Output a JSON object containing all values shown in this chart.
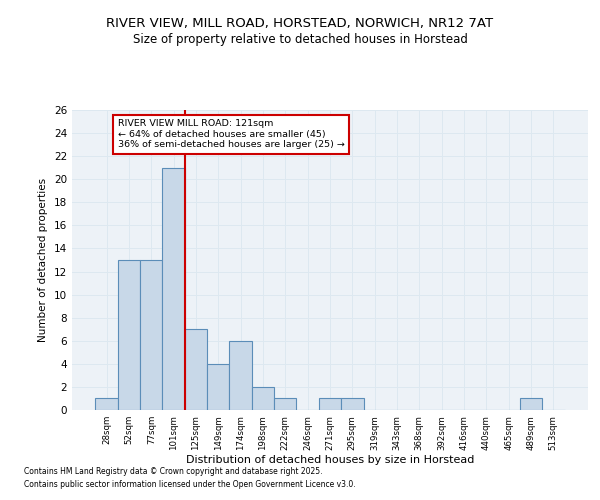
{
  "title_line1": "RIVER VIEW, MILL ROAD, HORSTEAD, NORWICH, NR12 7AT",
  "title_line2": "Size of property relative to detached houses in Horstead",
  "xlabel": "Distribution of detached houses by size in Horstead",
  "ylabel": "Number of detached properties",
  "categories": [
    "28sqm",
    "52sqm",
    "77sqm",
    "101sqm",
    "125sqm",
    "149sqm",
    "174sqm",
    "198sqm",
    "222sqm",
    "246sqm",
    "271sqm",
    "295sqm",
    "319sqm",
    "343sqm",
    "368sqm",
    "392sqm",
    "416sqm",
    "440sqm",
    "465sqm",
    "489sqm",
    "513sqm"
  ],
  "values": [
    1,
    13,
    13,
    21,
    7,
    4,
    6,
    2,
    1,
    0,
    1,
    1,
    0,
    0,
    0,
    0,
    0,
    0,
    0,
    1,
    0
  ],
  "bar_color": "#c8d8e8",
  "bar_edge_color": "#5b8db8",
  "grid_color": "#dde8f0",
  "background_color": "#edf2f7",
  "annotation_text": "RIVER VIEW MILL ROAD: 121sqm\n← 64% of detached houses are smaller (45)\n36% of semi-detached houses are larger (25) →",
  "vline_index": 3.5,
  "vline_color": "#cc0000",
  "annotation_box_edgecolor": "#cc0000",
  "ylim": [
    0,
    26
  ],
  "yticks": [
    0,
    2,
    4,
    6,
    8,
    10,
    12,
    14,
    16,
    18,
    20,
    22,
    24,
    26
  ],
  "footer_line1": "Contains HM Land Registry data © Crown copyright and database right 2025.",
  "footer_line2": "Contains public sector information licensed under the Open Government Licence v3.0."
}
